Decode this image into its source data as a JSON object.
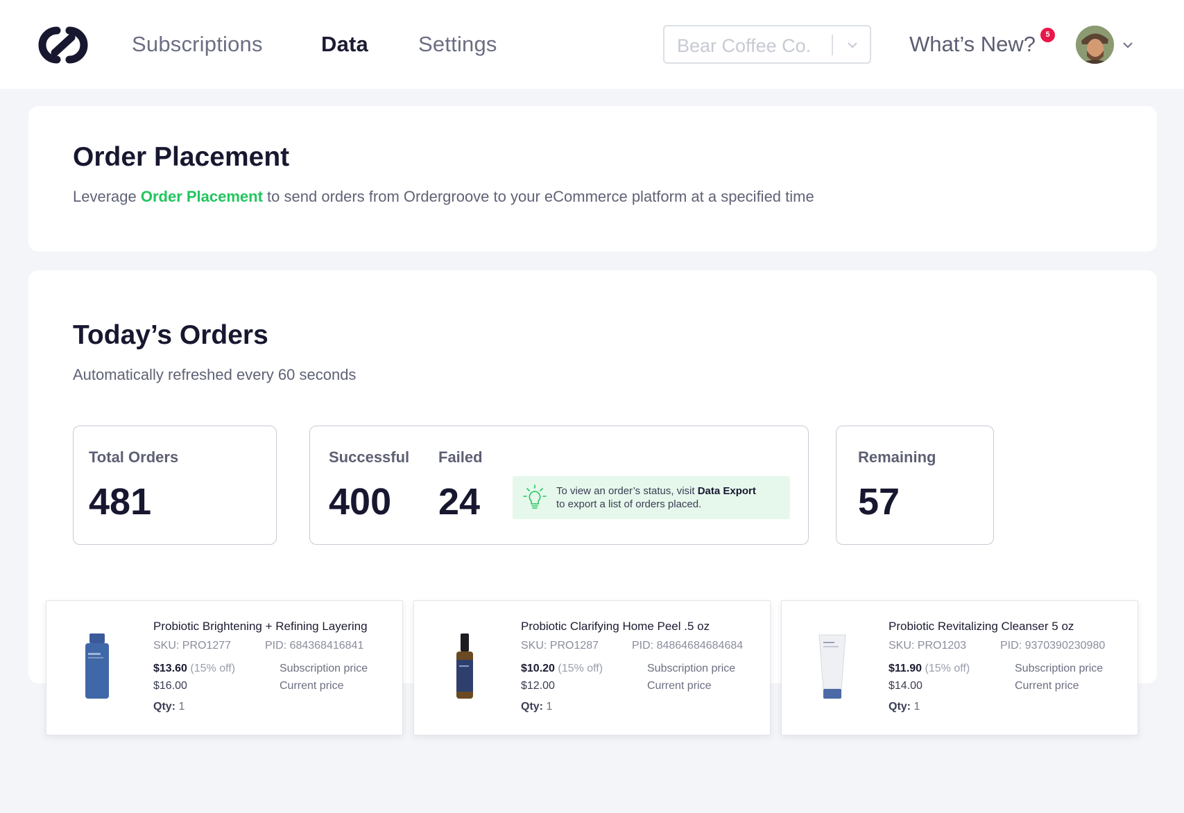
{
  "nav": {
    "tabs": [
      {
        "label": "Subscriptions",
        "active": false
      },
      {
        "label": "Data",
        "active": true
      },
      {
        "label": "Settings",
        "active": false
      }
    ],
    "account_select_value": "Bear Coffee Co.",
    "whats_new_label": "What’s New?",
    "notification_count": "5"
  },
  "order_placement": {
    "title": "Order Placement",
    "desc_prefix": "Leverage ",
    "desc_link": "Order Placement",
    "desc_suffix": " to send orders from Ordergroove to your eCommerce platform at a specified time"
  },
  "todays_orders": {
    "title": "Today’s Orders",
    "subtitle": "Automatically refreshed every 60 seconds",
    "total": {
      "label": "Total Orders",
      "value": "481"
    },
    "successful": {
      "label": "Successful",
      "value": "400"
    },
    "failed": {
      "label": "Failed",
      "value": "24"
    },
    "remaining": {
      "label": "Remaining",
      "value": "57"
    },
    "tip": {
      "line1_prefix": "To view an order’s status, visit ",
      "line1_link": "Data Export",
      "line2": "to export a list of orders placed."
    }
  },
  "products": [
    {
      "name": "Probiotic Brightening + Refining Layering",
      "sku": "SKU: PRO1277",
      "pid": "PID: 684368416841",
      "sub_price": "$13.60",
      "discount": "(15% off)",
      "sub_price_label": "Subscription price",
      "current_price": "$16.00",
      "current_price_label": "Current price",
      "qty_label": "Qty:",
      "qty": "1"
    },
    {
      "name": "Probiotic Clarifying Home Peel .5 oz",
      "sku": "SKU: PRO1287",
      "pid": "PID: 84864684684684",
      "sub_price": "$10.20",
      "discount": "(15% off)",
      "sub_price_label": "Subscription price",
      "current_price": "$12.00",
      "current_price_label": "Current price",
      "qty_label": "Qty:",
      "qty": "1"
    },
    {
      "name": "Probiotic Revitalizing Cleanser 5 oz",
      "sku": "SKU: PRO1203",
      "pid": "PID: 9370390230980",
      "sub_price": "$11.90",
      "discount": "(15% off)",
      "sub_price_label": "Subscription price",
      "current_price": "$14.00",
      "current_price_label": "Current price",
      "qty_label": "Qty:",
      "qty": "1"
    }
  ],
  "colors": {
    "accent_green": "#22c55e",
    "tip_background": "#e6f8ec",
    "badge_red": "#e8174a",
    "text_dark": "#171730"
  },
  "icons": [
    "logo-icon",
    "chevron-down-icon",
    "lightbulb-icon",
    "avatar"
  ]
}
